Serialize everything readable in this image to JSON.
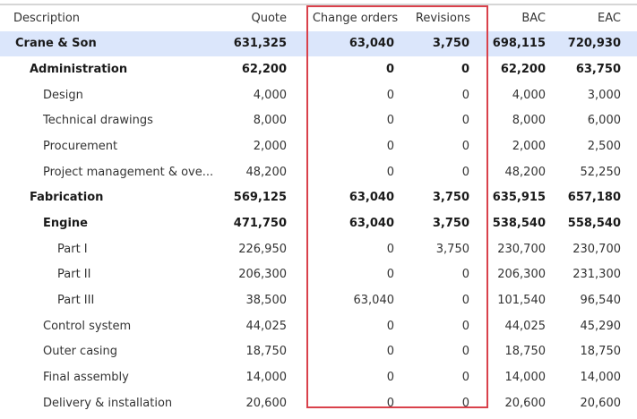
{
  "columns": {
    "description": "Description",
    "quote": "Quote",
    "change_orders": "Change orders",
    "revisions": "Revisions",
    "bac": "BAC",
    "eac": "EAC"
  },
  "rows": [
    {
      "description": "Crane & Son",
      "quote": "631,325",
      "change_orders": "63,040",
      "revisions": "3,750",
      "bac": "698,115",
      "eac": "720,930"
    },
    {
      "description": "Administration",
      "quote": "62,200",
      "change_orders": "0",
      "revisions": "0",
      "bac": "62,200",
      "eac": "63,750"
    },
    {
      "description": "Design",
      "quote": "4,000",
      "change_orders": "0",
      "revisions": "0",
      "bac": "4,000",
      "eac": "3,000"
    },
    {
      "description": "Technical drawings",
      "quote": "8,000",
      "change_orders": "0",
      "revisions": "0",
      "bac": "8,000",
      "eac": "6,000"
    },
    {
      "description": "Procurement",
      "quote": "2,000",
      "change_orders": "0",
      "revisions": "0",
      "bac": "2,000",
      "eac": "2,500"
    },
    {
      "description": "Project management & ove...",
      "quote": "48,200",
      "change_orders": "0",
      "revisions": "0",
      "bac": "48,200",
      "eac": "52,250"
    },
    {
      "description": "Fabrication",
      "quote": "569,125",
      "change_orders": "63,040",
      "revisions": "3,750",
      "bac": "635,915",
      "eac": "657,180"
    },
    {
      "description": "Engine",
      "quote": "471,750",
      "change_orders": "63,040",
      "revisions": "3,750",
      "bac": "538,540",
      "eac": "558,540"
    },
    {
      "description": "Part I",
      "quote": "226,950",
      "change_orders": "0",
      "revisions": "3,750",
      "bac": "230,700",
      "eac": "230,700"
    },
    {
      "description": "Part II",
      "quote": "206,300",
      "change_orders": "0",
      "revisions": "0",
      "bac": "206,300",
      "eac": "231,300"
    },
    {
      "description": "Part III",
      "quote": "38,500",
      "change_orders": "63,040",
      "revisions": "0",
      "bac": "101,540",
      "eac": "96,540"
    },
    {
      "description": "Control system",
      "quote": "44,025",
      "change_orders": "0",
      "revisions": "0",
      "bac": "44,025",
      "eac": "45,290"
    },
    {
      "description": "Outer casing",
      "quote": "18,750",
      "change_orders": "0",
      "revisions": "0",
      "bac": "18,750",
      "eac": "18,750"
    },
    {
      "description": "Final assembly",
      "quote": "14,000",
      "change_orders": "0",
      "revisions": "0",
      "bac": "14,000",
      "eac": "14,000"
    },
    {
      "description": "Delivery & installation",
      "quote": "20,600",
      "change_orders": "0",
      "revisions": "0",
      "bac": "20,600",
      "eac": "20,600"
    }
  ],
  "colors": {
    "selected_row": "#dbe6fb",
    "highlight_border": "#d9414b",
    "header_rule": "#d6d6d6"
  }
}
